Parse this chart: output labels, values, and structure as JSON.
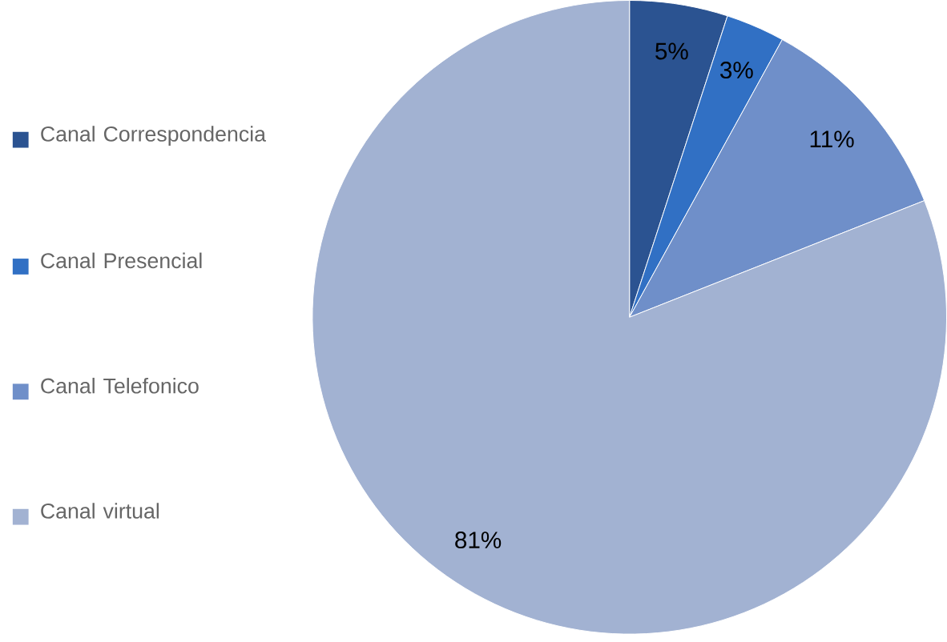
{
  "chart_data": {
    "type": "pie",
    "categories": [
      "Canal Correspondencia",
      "Canal Presencial",
      "Canal Telefonico",
      "Canal virtual"
    ],
    "values": [
      5,
      3,
      11,
      81
    ],
    "value_labels": [
      "5%",
      "3%",
      "11%",
      "81%"
    ],
    "colors": [
      "#2b5391",
      "#3170c4",
      "#6f8fc9",
      "#a2b2d2"
    ],
    "legend": "left"
  }
}
